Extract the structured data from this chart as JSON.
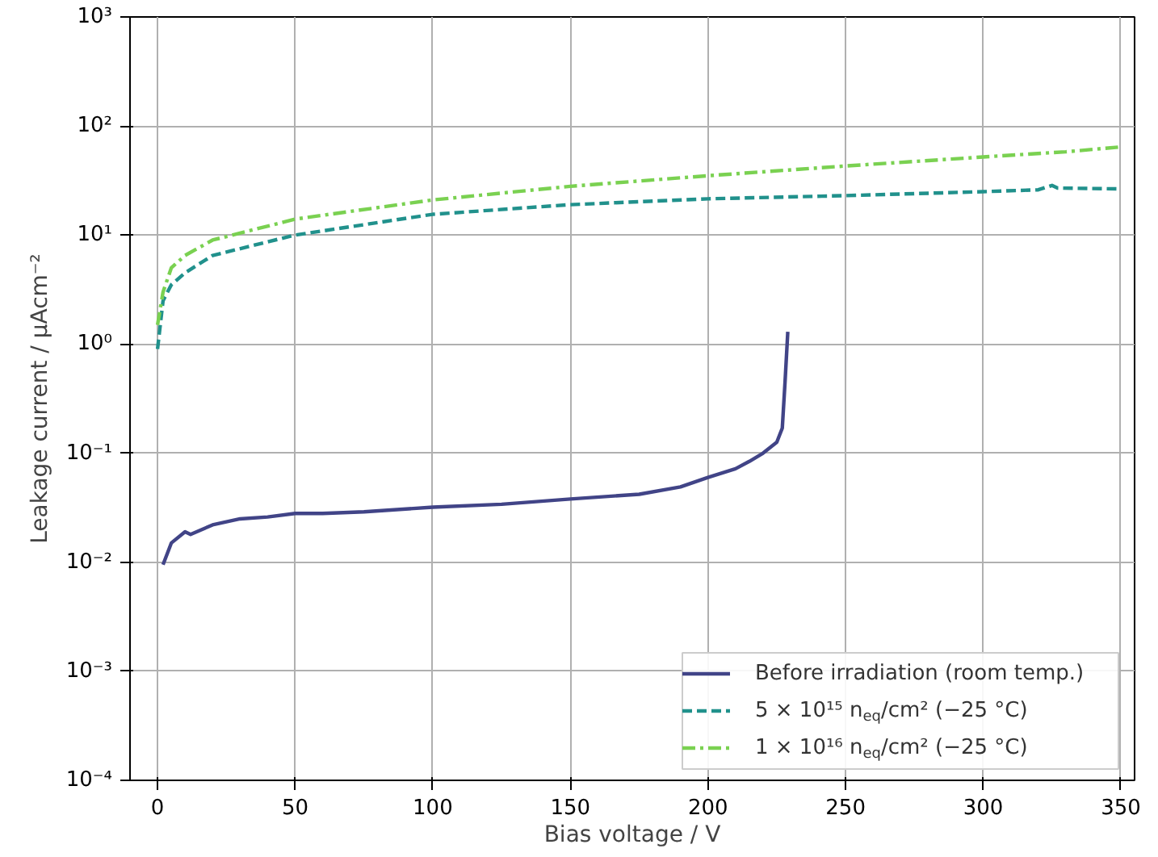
{
  "chart_data": {
    "type": "line",
    "xlabel": "Bias voltage / V",
    "ylabel": "Leakage current / µAcm⁻²",
    "log": "y",
    "grid": true,
    "legend": "bottom right",
    "xlim": [
      -10,
      355
    ],
    "xticks": [
      0,
      50,
      100,
      150,
      200,
      250,
      300,
      350
    ],
    "ylim": [
      0.0001,
      1000
    ],
    "yticks": [
      {
        "value": 0.0001,
        "label": "10⁻⁴"
      },
      {
        "value": 0.001,
        "label": "10⁻³"
      },
      {
        "value": 0.01,
        "label": "10⁻²"
      },
      {
        "value": 0.1,
        "label": "10⁻¹"
      },
      {
        "value": 1,
        "label": "10⁰"
      },
      {
        "value": 10,
        "label": "10¹"
      },
      {
        "value": 100,
        "label": "10²"
      },
      {
        "value": 1000,
        "label": "10³"
      }
    ],
    "series": [
      {
        "name": "Before irradiation (room temp.)",
        "color": "#414487",
        "line_style": "solid",
        "x": [
          2,
          5,
          10,
          12,
          20,
          30,
          40,
          50,
          60,
          75,
          100,
          125,
          150,
          175,
          190,
          200,
          210,
          215,
          220,
          225,
          227,
          228,
          229
        ],
        "values": [
          0.0095,
          0.015,
          0.019,
          0.018,
          0.022,
          0.025,
          0.026,
          0.028,
          0.028,
          0.029,
          0.032,
          0.034,
          0.038,
          0.042,
          0.049,
          0.06,
          0.072,
          0.084,
          0.1,
          0.126,
          0.17,
          0.45,
          1.3
        ]
      },
      {
        "name": "5 × 10¹⁵ n$_{eq}$/cm² (−25 °C)",
        "color": "#21918c",
        "line_style": "dashed",
        "x": [
          0,
          2,
          5,
          10,
          20,
          50,
          100,
          150,
          200,
          250,
          300,
          320,
          325,
          327,
          349
        ],
        "values": [
          0.9,
          2.5,
          3.5,
          4.5,
          6.5,
          10,
          15.5,
          19,
          21.5,
          23,
          25,
          26,
          28.5,
          27,
          26.5
        ]
      },
      {
        "name": "1 × 10¹⁶ n$_{eq}$/cm² (−25 °C)",
        "color": "#7ad151",
        "line_style": "dashdot",
        "x": [
          0,
          2,
          5,
          10,
          20,
          50,
          100,
          150,
          200,
          250,
          300,
          330,
          349
        ],
        "values": [
          1.5,
          3,
          5,
          6.5,
          9,
          14,
          21,
          28,
          35,
          43,
          52,
          58,
          64
        ]
      }
    ]
  }
}
